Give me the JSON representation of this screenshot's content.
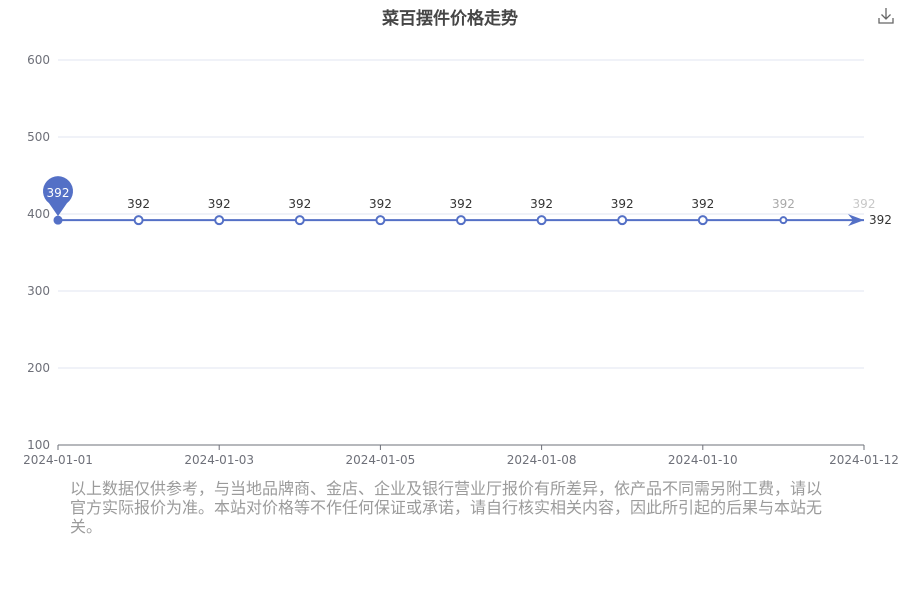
{
  "chart_data": {
    "type": "line",
    "title": "菜百摆件价格走势",
    "x": [
      "2024-01-01",
      "2024-01-02",
      "2024-01-03",
      "2024-01-04",
      "2024-01-05",
      "2024-01-06",
      "2024-01-08",
      "2024-01-09",
      "2024-01-10",
      "2024-01-11",
      "2024-01-12"
    ],
    "x_tick_labels": [
      "2024-01-01",
      "2024-01-03",
      "2024-01-05",
      "2024-01-08",
      "2024-01-10",
      "2024-01-12"
    ],
    "series": [
      {
        "values": [
          392,
          392,
          392,
          392,
          392,
          392,
          392,
          392,
          392,
          392,
          392
        ]
      }
    ],
    "y_ticks": [
      100,
      200,
      300,
      400,
      500,
      600
    ],
    "ylim": [
      100,
      600
    ],
    "grid": true,
    "markers": {
      "max_pin": "392",
      "end_label": "392"
    },
    "colors": {
      "line": "#5470c6",
      "grid": "#e0e6f1",
      "axis": "#6e7079",
      "label": "#333333"
    }
  },
  "toolbar": {
    "download_icon": "download-icon"
  },
  "disclaimer": "以上数据仅供参考，与当地品牌商、金店、企业及银行营业厅报价有所差异，依产品不同需另附工费，请以官方实际报价为准。本站对价格等不作任何保证或承诺，请自行核实相关内容，因此所引起的后果与本站无关。"
}
